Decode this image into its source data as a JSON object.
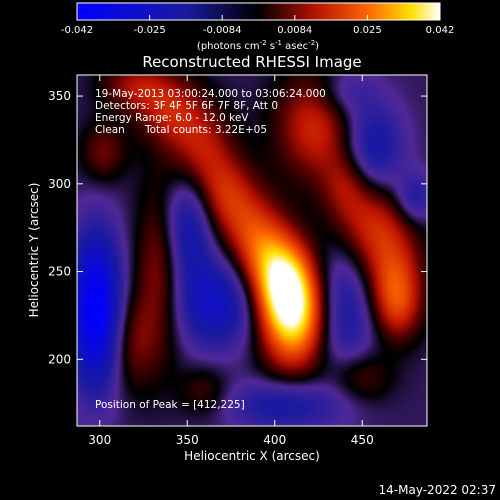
{
  "chart_data": {
    "type": "heatmap",
    "title": "Reconstructed RHESSI Image",
    "xlabel": "Heliocentric X (arcsec)",
    "ylabel": "Heliocentric Y (arcsec)",
    "xlim": [
      287,
      487
    ],
    "ylim": [
      162,
      362
    ],
    "xticks": [
      300,
      350,
      400,
      450
    ],
    "yticks": [
      200,
      250,
      300,
      350
    ],
    "colorbar": {
      "ticks": [
        "-0.042",
        "-0.025",
        "-0.0084",
        "0.0084",
        "0.025",
        "0.042"
      ],
      "range": [
        -0.042,
        0.042
      ],
      "unit_base": "(photons cm",
      "unit_exp1": "-2",
      "unit_mid": " s",
      "unit_exp2": "-1",
      "unit_mid2": " asec",
      "unit_exp3": "-2",
      "unit_end": ")"
    },
    "annotations": {
      "time": "19-May-2013 03:00:24.000 to 03:06:24.000",
      "detectors": "Detectors: 3F 4F 5F 6F 7F 8F, Att 0",
      "energy": "Energy Range: 6.0 - 12.0 keV",
      "method": "Clean",
      "counts": "Total counts: 3.22E+05",
      "peak": "Position of Peak = [412,225]"
    },
    "peak": [
      412,
      225
    ],
    "blobs": [
      {
        "x": 412,
        "y": 225,
        "value": 0.042,
        "sx": 14,
        "sy": 22
      },
      {
        "x": 403,
        "y": 246,
        "value": 0.03,
        "sx": 12,
        "sy": 18
      },
      {
        "x": 389,
        "y": 268,
        "value": 0.02,
        "sx": 12,
        "sy": 18
      },
      {
        "x": 373,
        "y": 292,
        "value": 0.017,
        "sx": 12,
        "sy": 16
      },
      {
        "x": 358,
        "y": 318,
        "value": 0.017,
        "sx": 13,
        "sy": 18
      },
      {
        "x": 340,
        "y": 342,
        "value": 0.016,
        "sx": 14,
        "sy": 14
      },
      {
        "x": 320,
        "y": 356,
        "value": 0.014,
        "sx": 14,
        "sy": 10
      },
      {
        "x": 423,
        "y": 333,
        "value": 0.02,
        "sx": 16,
        "sy": 22
      },
      {
        "x": 441,
        "y": 300,
        "value": 0.012,
        "sx": 10,
        "sy": 14
      },
      {
        "x": 456,
        "y": 276,
        "value": 0.02,
        "sx": 16,
        "sy": 18
      },
      {
        "x": 468,
        "y": 247,
        "value": 0.018,
        "sx": 12,
        "sy": 16
      },
      {
        "x": 470,
        "y": 228,
        "value": 0.016,
        "sx": 10,
        "sy": 14
      },
      {
        "x": 448,
        "y": 190,
        "value": 0.012,
        "sx": 13,
        "sy": 11
      },
      {
        "x": 335,
        "y": 250,
        "value": 0.016,
        "sx": 10,
        "sy": 35
      },
      {
        "x": 318,
        "y": 210,
        "value": 0.012,
        "sx": 10,
        "sy": 20
      },
      {
        "x": 302,
        "y": 318,
        "value": 0.012,
        "sx": 9,
        "sy": 12
      },
      {
        "x": 360,
        "y": 182,
        "value": 0.009,
        "sx": 10,
        "sy": 10
      },
      {
        "x": 298,
        "y": 228,
        "value": -0.04,
        "sx": 10,
        "sy": 30
      },
      {
        "x": 350,
        "y": 276,
        "value": -0.02,
        "sx": 10,
        "sy": 22
      },
      {
        "x": 367,
        "y": 232,
        "value": -0.022,
        "sx": 18,
        "sy": 18
      },
      {
        "x": 437,
        "y": 228,
        "value": -0.018,
        "sx": 14,
        "sy": 28
      },
      {
        "x": 456,
        "y": 320,
        "value": -0.018,
        "sx": 12,
        "sy": 18
      },
      {
        "x": 405,
        "y": 174,
        "value": -0.016,
        "sx": 22,
        "sy": 10
      },
      {
        "x": 440,
        "y": 352,
        "value": -0.01,
        "sx": 12,
        "sy": 10
      },
      {
        "x": 480,
        "y": 292,
        "value": -0.014,
        "sx": 8,
        "sy": 10
      }
    ]
  },
  "footer": {
    "timestamp": "14-May-2022 02:37"
  }
}
